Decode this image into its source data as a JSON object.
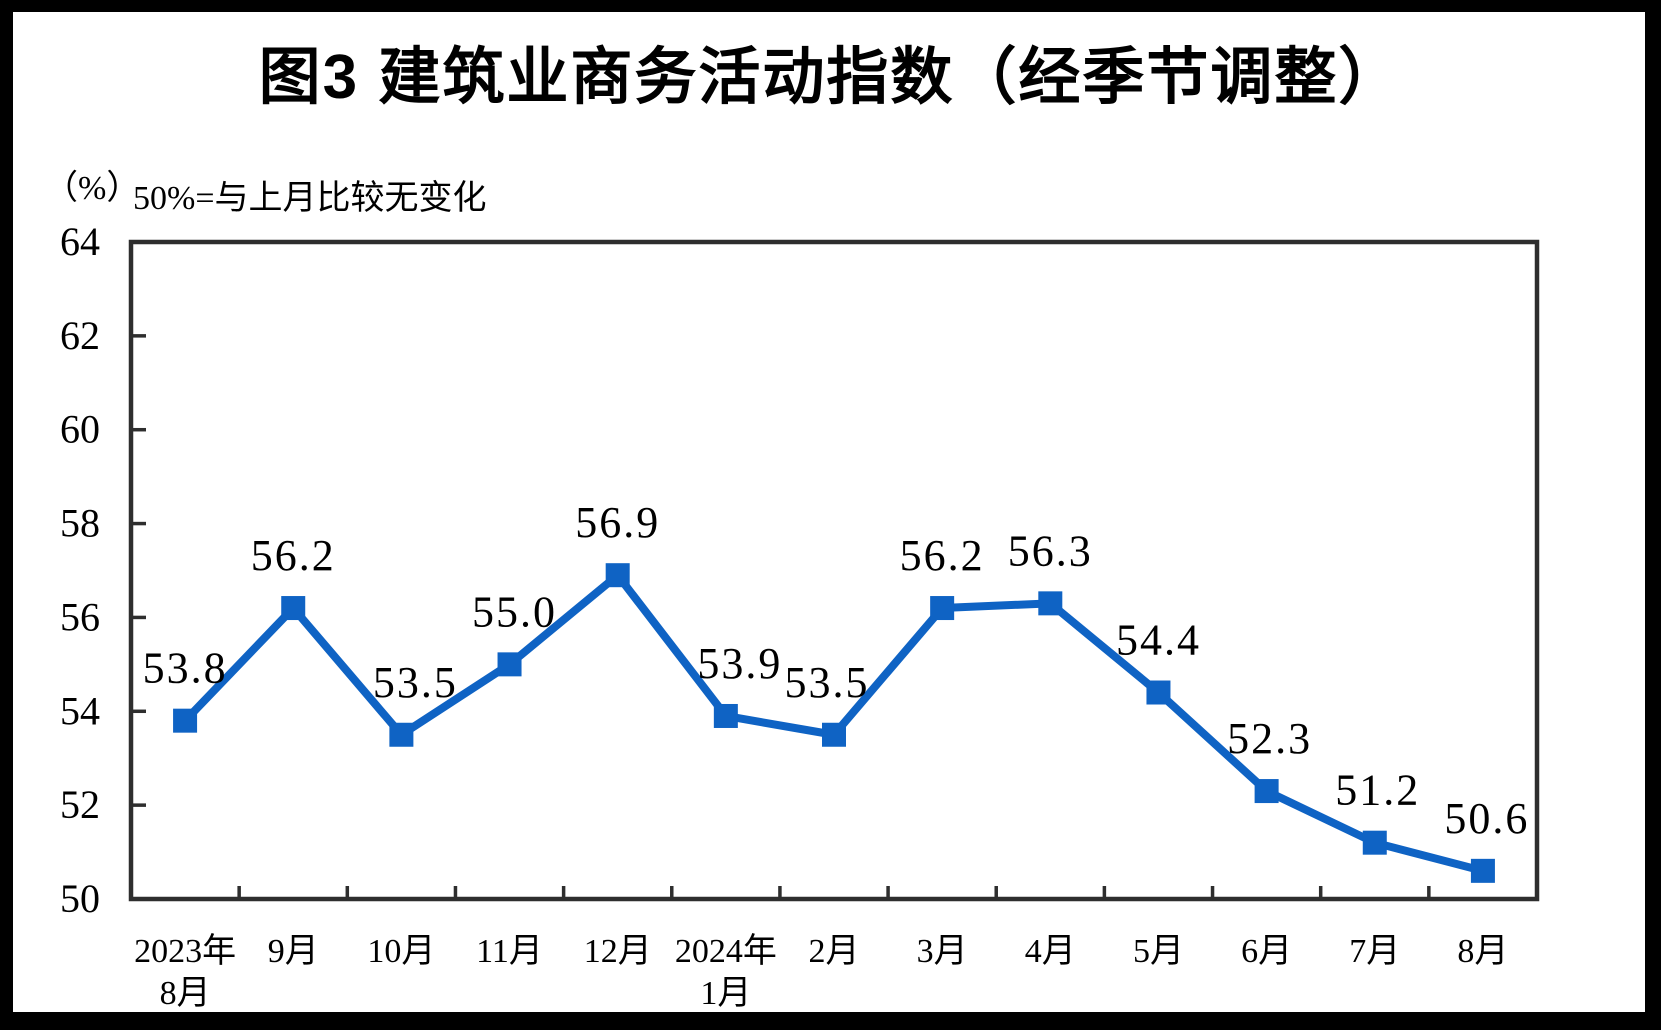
{
  "figure": {
    "title": "图3 建筑业商务活动指数（经季节调整）",
    "unit_label": "（%）",
    "subtitle": "50%=与上月比较无变化"
  },
  "colors": {
    "line": "#0f63c4",
    "marker": "#0f63c4",
    "axis": "#2e2e2e",
    "text": "#000000",
    "background": "#ffffff",
    "frame": "#000000"
  },
  "chart_data": {
    "type": "line",
    "title": "图3 建筑业商务活动指数（经季节调整）",
    "subtitle": "50%=与上月比较无变化",
    "unit": "（%）",
    "categories": [
      "2023年\n8月",
      "9月",
      "10月",
      "11月",
      "12月",
      "2024年\n1月",
      "2月",
      "3月",
      "4月",
      "5月",
      "6月",
      "7月",
      "8月"
    ],
    "values": [
      53.8,
      56.2,
      53.5,
      55.0,
      56.9,
      53.9,
      53.5,
      56.2,
      56.3,
      54.4,
      52.3,
      51.2,
      50.6
    ],
    "point_labels": [
      "53.8",
      "56.2",
      "53.5",
      "55.0",
      "56.9",
      "53.9",
      "53.5",
      "56.2",
      "56.3",
      "54.4",
      "52.3",
      "51.2",
      "50.6"
    ],
    "ylim": [
      50,
      64
    ],
    "ytick_step": 2,
    "ytick_labels": [
      "50",
      "52",
      "54",
      "56",
      "58",
      "60",
      "62",
      "64"
    ],
    "grid": false,
    "legend": "none",
    "marker_shape": "square",
    "series_name": "建筑业商务活动指数"
  }
}
